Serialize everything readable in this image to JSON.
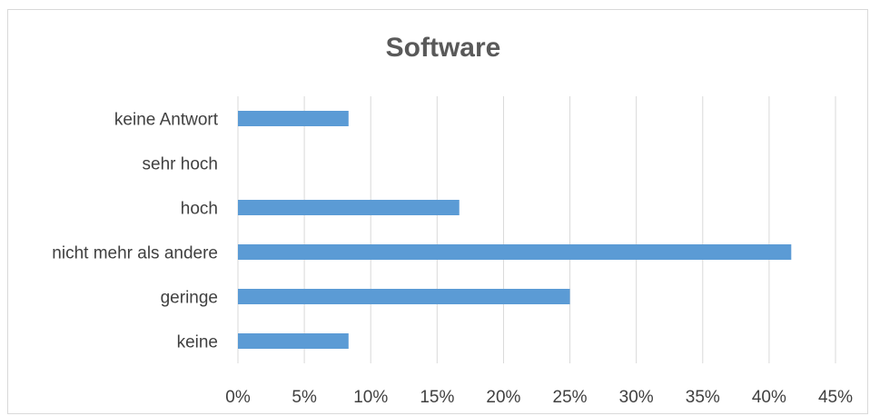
{
  "chart_data": {
    "type": "bar",
    "orientation": "horizontal",
    "title": "Software",
    "categories": [
      "keine Antwort",
      "sehr hoch",
      "hoch ",
      "nicht mehr als andere",
      "geringe",
      "keine"
    ],
    "values": [
      8.33,
      0,
      16.67,
      41.67,
      25,
      8.33
    ],
    "xlim": [
      0,
      45
    ],
    "xticks": [
      "0%",
      "5%",
      "10%",
      "15%",
      "20%",
      "25%",
      "30%",
      "35%",
      "40%",
      "45%"
    ],
    "xlabel": "",
    "ylabel": "",
    "grid": "vertical",
    "legend": "none",
    "bar_color": "#5b9bd5",
    "grid_color": "#d9d9d9"
  }
}
